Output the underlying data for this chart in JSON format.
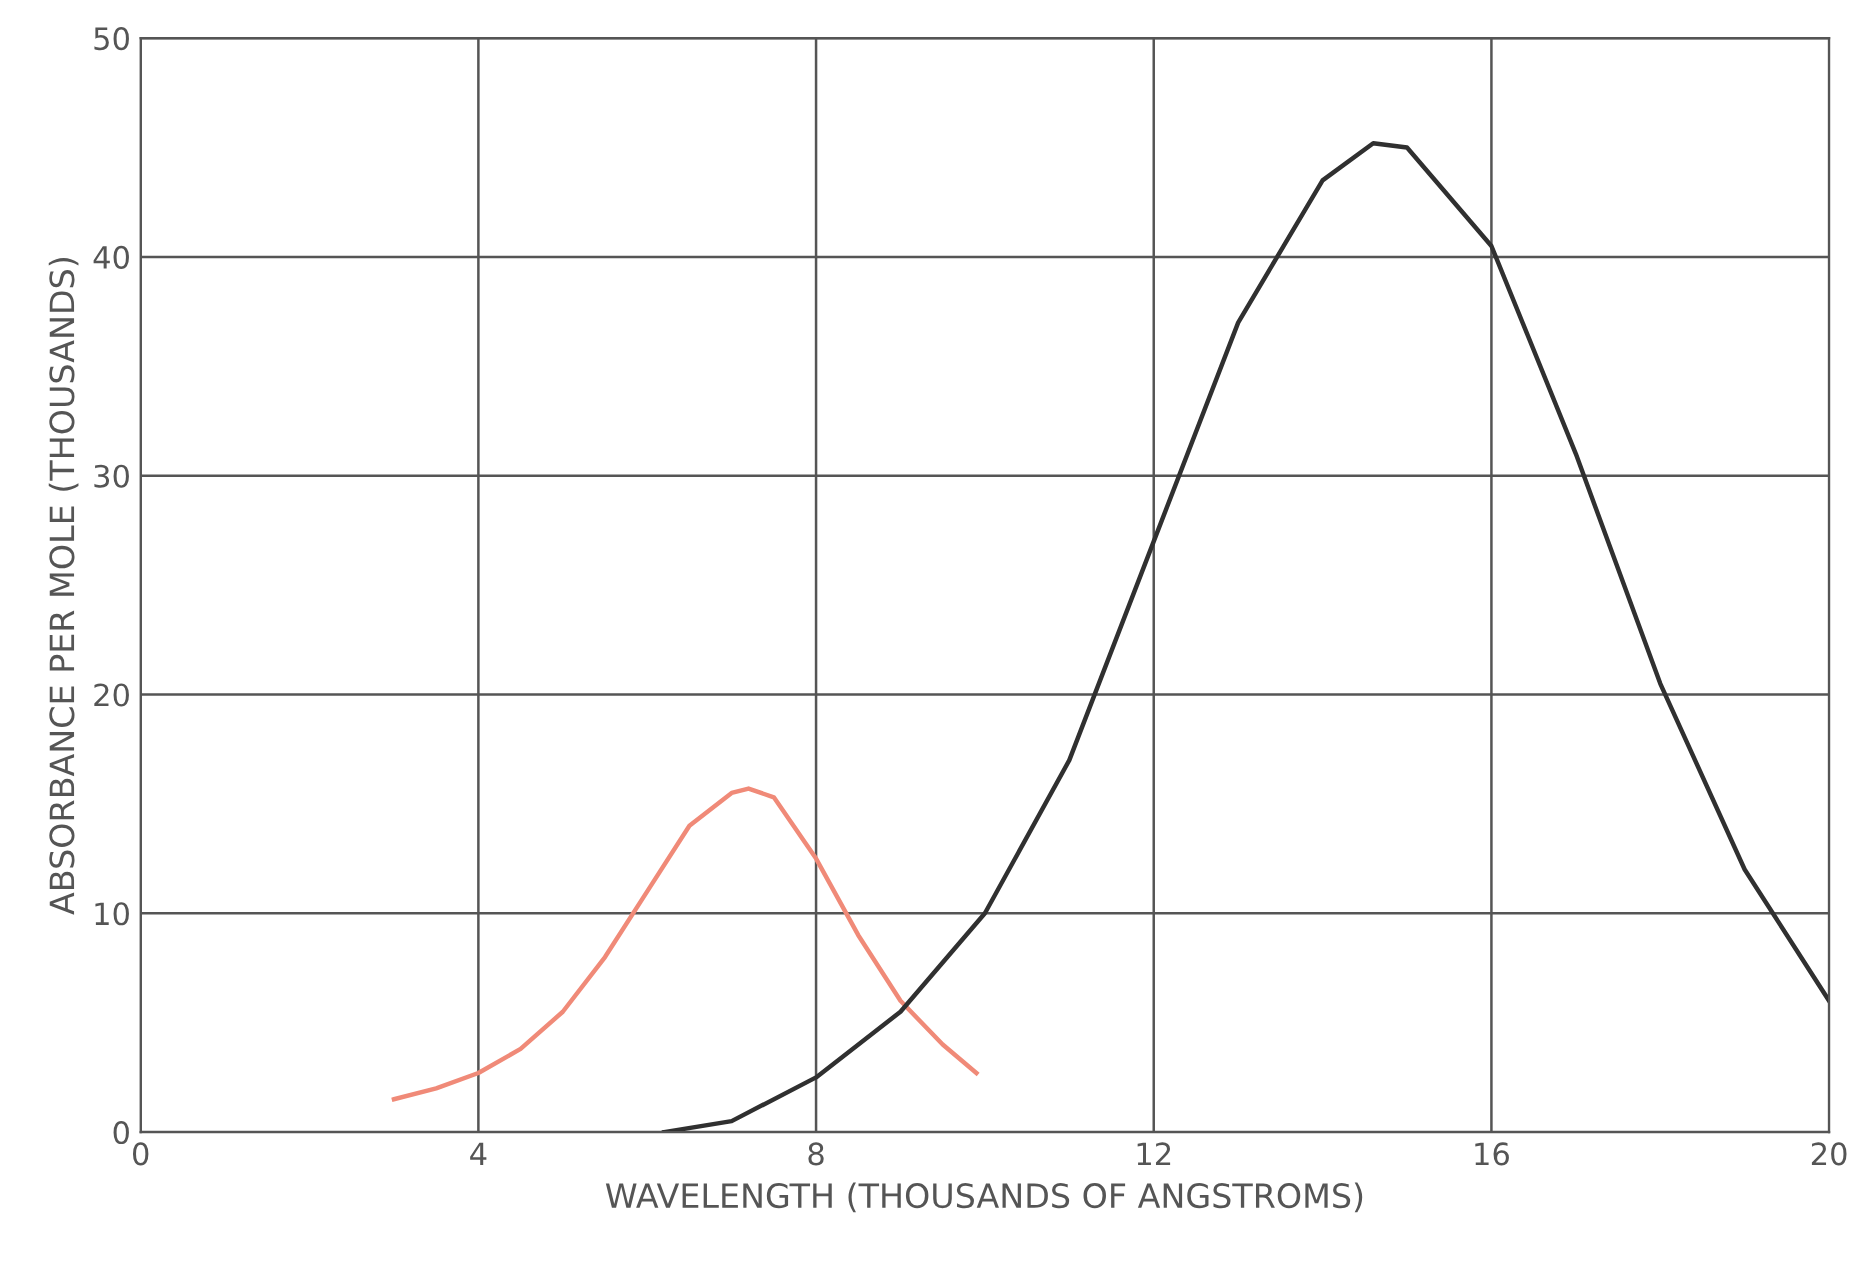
{
  "chart_data": {
    "type": "line",
    "xlabel": "WAVELENGTH (THOUSANDS OF ANGSTROMS)",
    "ylabel": "ABSORBANCE PER MOLE (THOUSANDS)",
    "xlim": [
      0,
      20
    ],
    "ylim": [
      0,
      50
    ],
    "xticks": [
      0,
      4,
      8,
      12,
      16,
      20
    ],
    "yticks": [
      0,
      10,
      20,
      30,
      40,
      50
    ],
    "grid": true,
    "line_style": "solid",
    "series": [
      {
        "color": "#f08a78",
        "x": [
          3,
          3.5,
          4,
          4.5,
          5,
          5.5,
          6,
          6.5,
          7,
          7.2,
          7.5,
          8,
          8.5,
          9,
          9.5,
          9.9
        ],
        "values": [
          1.5,
          2,
          2.7,
          3.8,
          5.5,
          8,
          11,
          14,
          15.5,
          15.7,
          15.3,
          12.5,
          9,
          6,
          4,
          2.7
        ]
      },
      {
        "color": "#303030",
        "x": [
          6.2,
          7,
          8,
          9,
          10,
          11,
          12,
          13,
          14,
          14.6,
          15,
          16,
          17,
          18,
          19,
          20
        ],
        "values": [
          0,
          0.5,
          2.5,
          5.5,
          10,
          17,
          27,
          37,
          43.5,
          45.2,
          45,
          40.5,
          31,
          20.5,
          12,
          6
        ]
      }
    ]
  }
}
